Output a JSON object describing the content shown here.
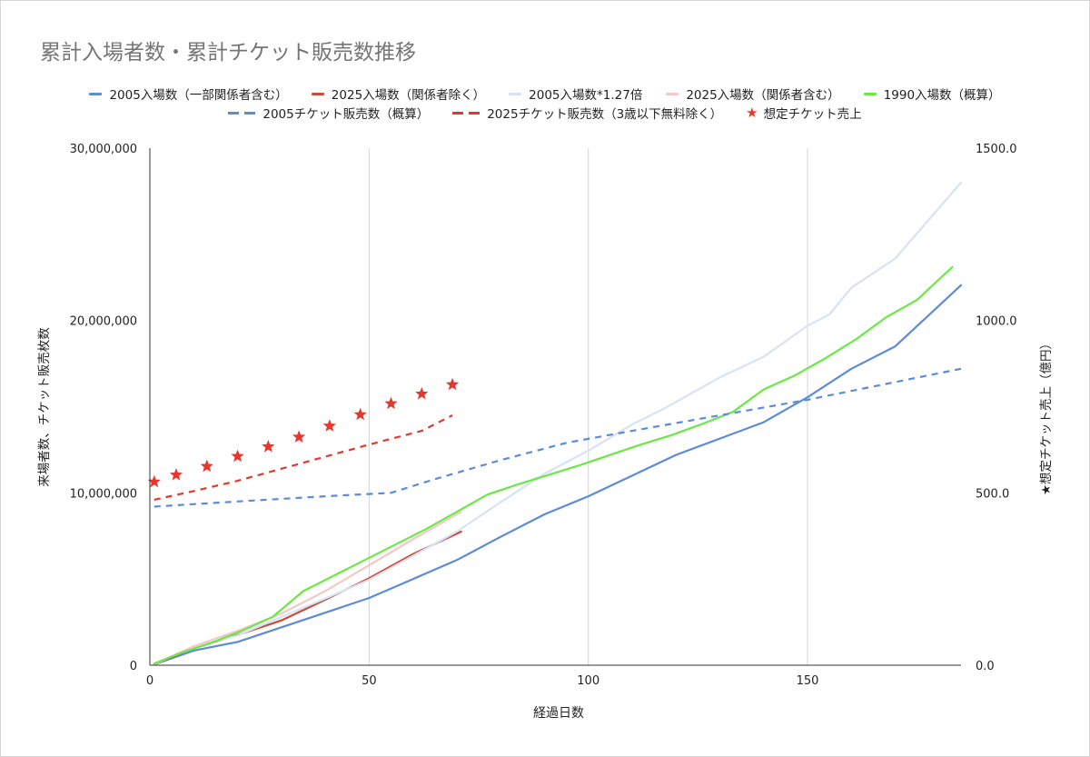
{
  "chart_data": {
    "type": "line",
    "title": "累計入場者数・累計チケット販売数推移",
    "xlabel": "経過日数",
    "ylabel_left": "来場者数、チケット販売枚数",
    "ylabel_right": "★想定チケット売上（億円）",
    "xlim": [
      0,
      185
    ],
    "ylim_left": [
      0,
      30000000
    ],
    "ylim_right": [
      0,
      1500
    ],
    "x_ticks": [
      0,
      50,
      100,
      150
    ],
    "x_tick_labels": [
      "0",
      "50",
      "100",
      "150"
    ],
    "y_left_ticks": [
      0,
      10000000,
      20000000,
      30000000
    ],
    "y_left_tick_labels": [
      "0",
      "10,000,000",
      "20,000,000",
      "30,000,000"
    ],
    "y_right_ticks": [
      0,
      500,
      1000,
      1500
    ],
    "y_right_tick_labels": [
      "0.0",
      "500.0",
      "1000.0",
      "1500.0"
    ],
    "grid": "vertical",
    "legend_position": "top",
    "series": [
      {
        "name": "2005入場数（一部関係者含む）",
        "color": "#5b8bd9",
        "style": "solid",
        "axis": "left",
        "x": [
          1,
          10,
          20,
          30,
          40,
          50,
          60,
          70,
          80,
          90,
          100,
          110,
          120,
          130,
          140,
          150,
          160,
          170,
          185
        ],
        "y": [
          50000,
          850000,
          1350000,
          2200000,
          3050000,
          3900000,
          5000000,
          6100000,
          7450000,
          8750000,
          9800000,
          11000000,
          12200000,
          13150000,
          14100000,
          15550000,
          17200000,
          18500000,
          22050000
        ]
      },
      {
        "name": "2025入場数（関係者除く）",
        "color": "#cc4a3c",
        "style": "solid",
        "axis": "left",
        "x": [
          1,
          10,
          20,
          30,
          40,
          50,
          60,
          71
        ],
        "y": [
          50000,
          1000000,
          1750000,
          2600000,
          3800000,
          5050000,
          6450000,
          7750000
        ]
      },
      {
        "name": "2005入場数*1.27倍",
        "color": "#d7e3f4",
        "style": "solid",
        "axis": "left",
        "x": [
          1,
          10,
          20,
          30,
          40,
          50,
          60,
          70,
          80,
          90,
          100,
          110,
          117,
          130,
          140,
          150,
          155,
          160,
          170,
          185
        ],
        "y": [
          60000,
          1080000,
          1720000,
          2800000,
          3870000,
          4960000,
          6350000,
          7750000,
          9460000,
          11110000,
          12450000,
          13970000,
          14850000,
          16700000,
          17900000,
          19700000,
          20350000,
          21900000,
          23600000,
          28000000
        ]
      },
      {
        "name": "2025入場数（関係者含む）",
        "color": "#f2c9c6",
        "style": "solid",
        "axis": "left",
        "x": [
          1,
          10,
          20,
          30,
          40,
          50,
          60,
          71
        ],
        "y": [
          60000,
          1100000,
          2000000,
          3000000,
          4300000,
          5800000,
          7300000,
          8900000
        ]
      },
      {
        "name": "1990入場数（概算）",
        "color": "#6be845",
        "style": "solid",
        "axis": "left",
        "x": [
          1,
          7,
          14,
          21,
          28,
          35,
          42,
          49,
          56,
          63,
          70,
          77,
          84,
          91,
          98,
          105,
          112,
          119,
          126,
          133,
          140,
          147,
          154,
          161,
          168,
          175,
          183
        ],
        "y": [
          100000,
          700000,
          1300000,
          2000000,
          2800000,
          4300000,
          5200000,
          6100000,
          7000000,
          7900000,
          8900000,
          9900000,
          10500000,
          11050000,
          11600000,
          12200000,
          12800000,
          13350000,
          14000000,
          14700000,
          16000000,
          16800000,
          17800000,
          18900000,
          20200000,
          21200000,
          23100000
        ]
      },
      {
        "name": "2005チケット販売数（概算）",
        "color": "#5b8bd9",
        "style": "dashed",
        "axis": "left",
        "x": [
          1,
          20,
          40,
          55,
          65,
          80,
          95,
          110,
          130,
          150,
          185
        ],
        "y": [
          9200000,
          9500000,
          9800000,
          10000000,
          10800000,
          11900000,
          12900000,
          13600000,
          14500000,
          15400000,
          17200000
        ]
      },
      {
        "name": "2025チケット販売数（3歳以下無料除く）",
        "color": "#e5372e",
        "style": "dashed",
        "axis": "left",
        "x": [
          1,
          10,
          20,
          30,
          40,
          50,
          62,
          69
        ],
        "y": [
          9600000,
          10100000,
          10700000,
          11400000,
          12100000,
          12800000,
          13600000,
          14500000
        ]
      },
      {
        "name": "想定チケット売上",
        "color": "#e5372e",
        "style": "star",
        "axis": "right",
        "x": [
          1,
          6,
          13,
          20,
          27,
          34,
          41,
          48,
          55,
          62,
          69
        ],
        "y": [
          532,
          552,
          577,
          606,
          634,
          662,
          694,
          727,
          759,
          787,
          814
        ]
      }
    ]
  }
}
